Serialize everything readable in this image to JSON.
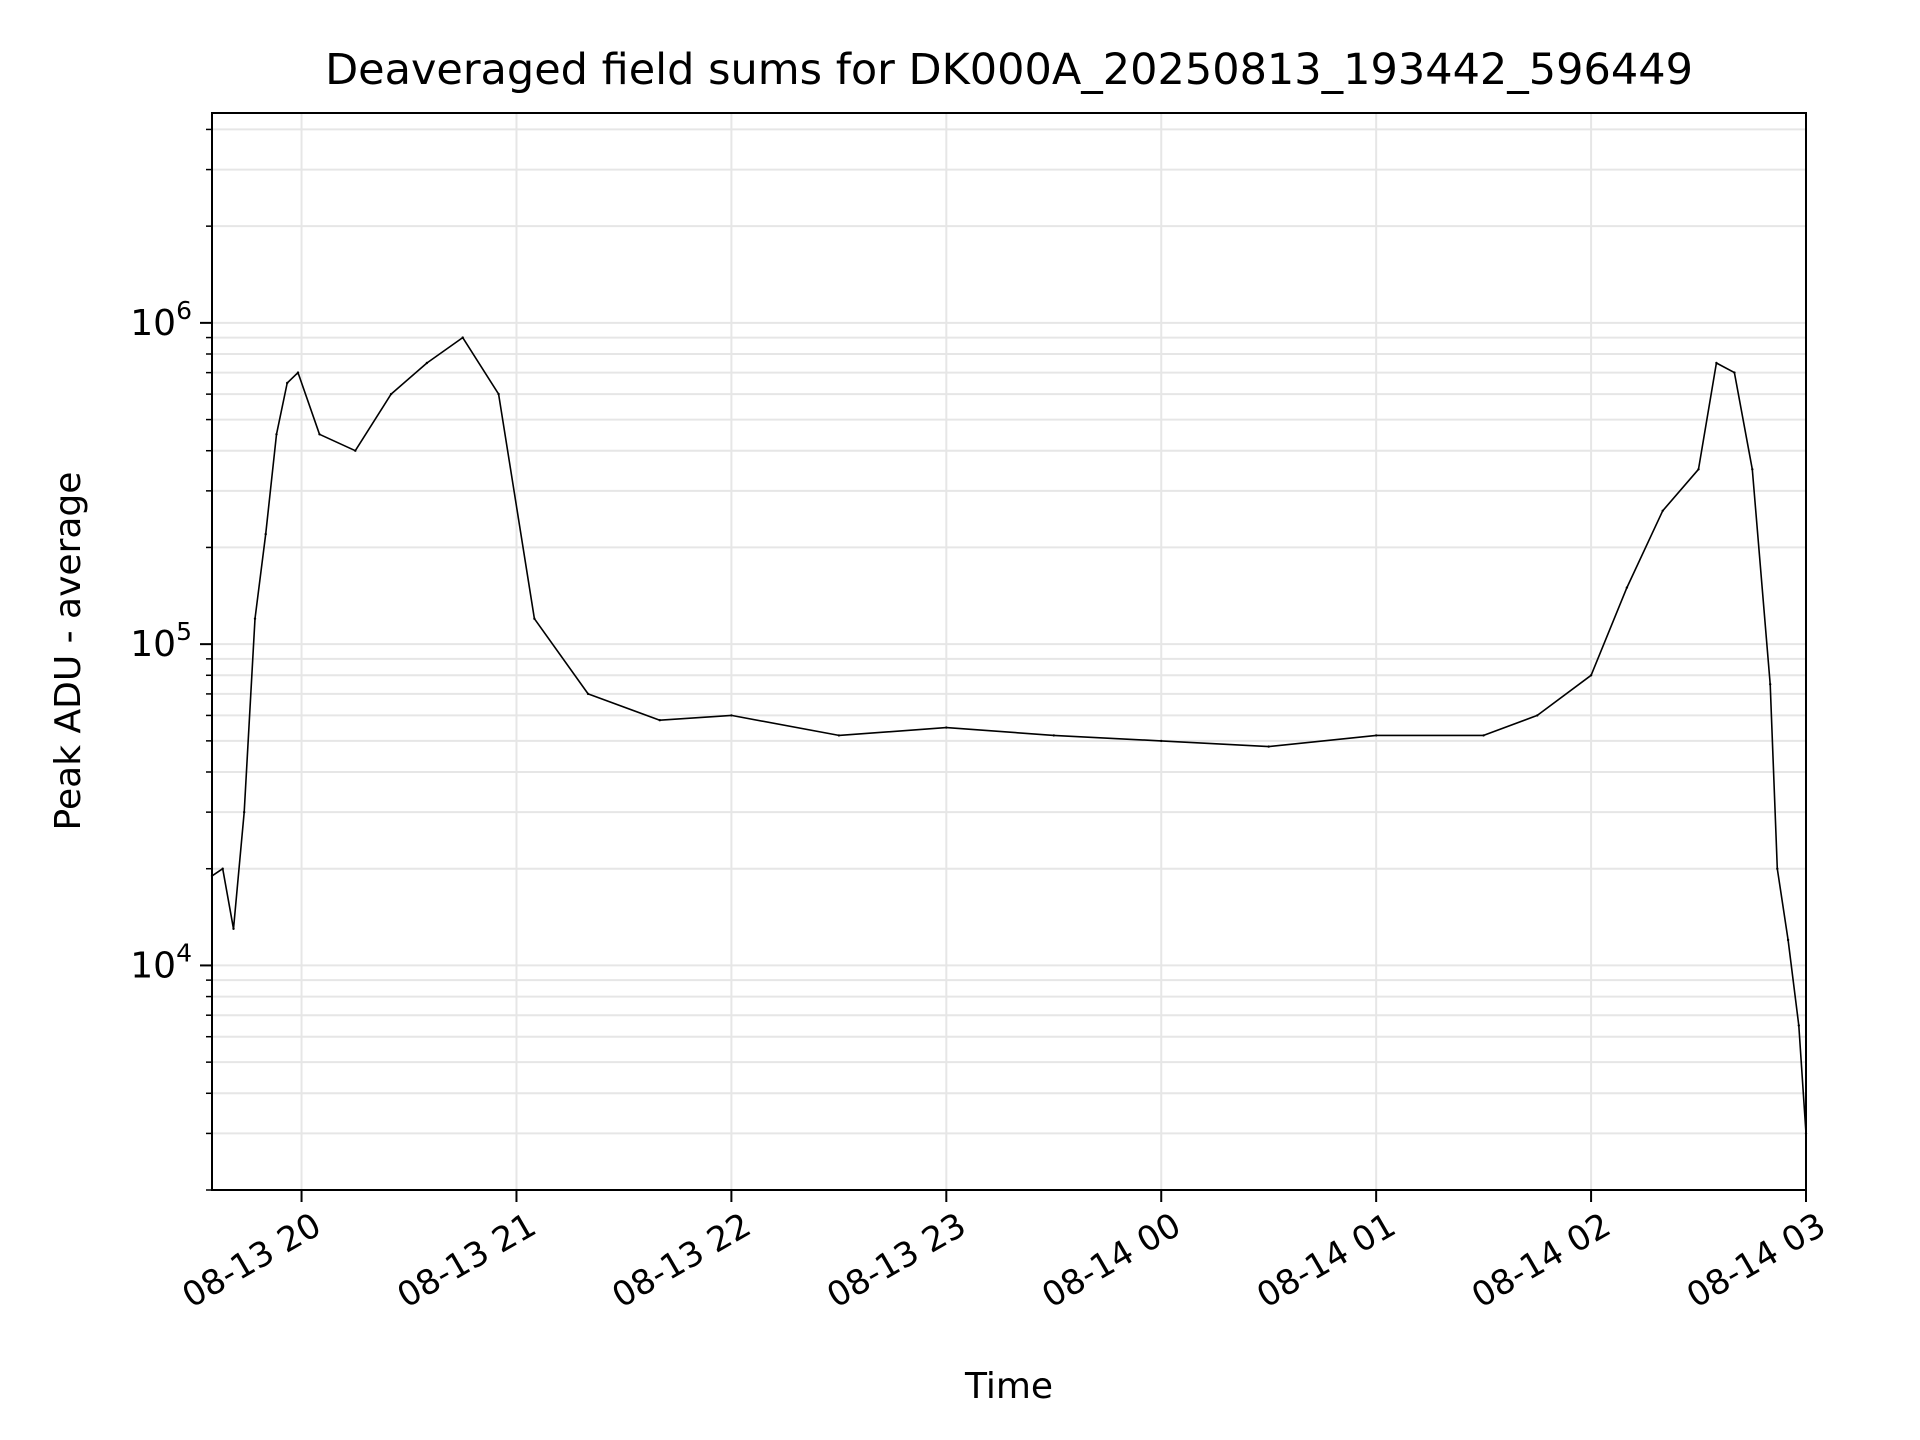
{
  "chart_data": {
    "type": "line",
    "title": "Deaveraged field sums for DK000A_20250813_193442_596449",
    "xlabel": "Time",
    "ylabel": "Peak ADU - average",
    "x_ticks": [
      "08-13 20",
      "08-13 21",
      "08-13 22",
      "08-13 23",
      "08-14 00",
      "08-14 01",
      "08-14 02",
      "08-14 03"
    ],
    "x_range": [
      "2025-08-13 19:35",
      "2025-08-14 03:00"
    ],
    "y_ticks": [
      {
        "exp": 4,
        "base": "10",
        "value": 10000
      },
      {
        "exp": 5,
        "base": "10",
        "value": 100000
      },
      {
        "exp": 6,
        "base": "10",
        "value": 1000000
      }
    ],
    "y_scale": "log",
    "ylim": [
      2000,
      4500000
    ],
    "grid": true,
    "line_color": "#000000",
    "grid_color": "#e6e6e6",
    "series": [
      {
        "x": [
          "2025-08-13 19:35",
          "2025-08-13 19:38",
          "2025-08-13 19:41",
          "2025-08-13 19:44",
          "2025-08-13 19:47",
          "2025-08-13 19:50",
          "2025-08-13 19:53",
          "2025-08-13 19:56",
          "2025-08-13 19:59",
          "2025-08-13 20:05",
          "2025-08-13 20:15",
          "2025-08-13 20:25",
          "2025-08-13 20:35",
          "2025-08-13 20:45",
          "2025-08-13 20:55",
          "2025-08-13 21:05",
          "2025-08-13 21:20",
          "2025-08-13 21:40",
          "2025-08-13 22:00",
          "2025-08-13 22:30",
          "2025-08-13 23:00",
          "2025-08-13 23:30",
          "2025-08-14 00:00",
          "2025-08-14 00:30",
          "2025-08-14 01:00",
          "2025-08-14 01:30",
          "2025-08-14 01:45",
          "2025-08-14 02:00",
          "2025-08-14 02:10",
          "2025-08-14 02:20",
          "2025-08-14 02:30",
          "2025-08-14 02:35",
          "2025-08-14 02:40",
          "2025-08-14 02:45",
          "2025-08-14 02:50",
          "2025-08-14 02:52",
          "2025-08-14 02:55",
          "2025-08-14 02:58",
          "2025-08-14 03:00"
        ],
        "y": [
          19000,
          20000,
          13000,
          30000,
          120000,
          220000,
          450000,
          650000,
          700000,
          450000,
          400000,
          600000,
          750000,
          900000,
          600000,
          120000,
          70000,
          58000,
          60000,
          52000,
          55000,
          52000,
          50000,
          48000,
          52000,
          52000,
          60000,
          80000,
          150000,
          260000,
          350000,
          750000,
          700000,
          350000,
          75000,
          20000,
          12000,
          6500,
          3000
        ]
      }
    ]
  }
}
